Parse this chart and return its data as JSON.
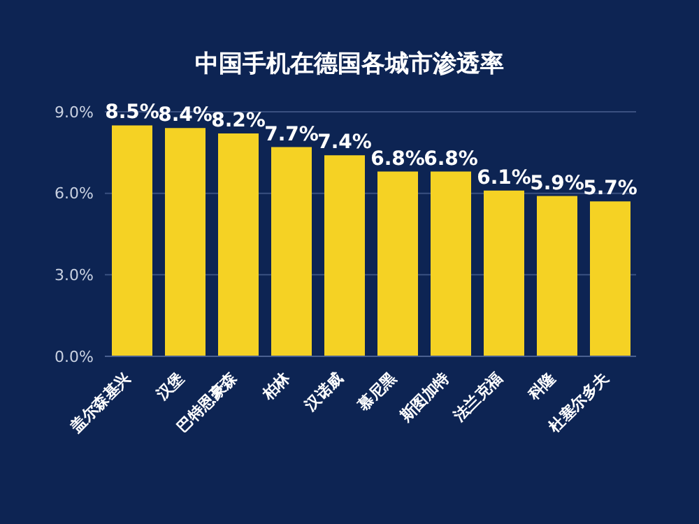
{
  "chart_data": {
    "type": "bar",
    "title": "中国手机在德国各城市渗透率",
    "categories": [
      "盖尔森基兴",
      "汉堡",
      "巴特恩豪森",
      "柏林",
      "汉诺威",
      "慕尼黑",
      "斯图加特",
      "法兰克福",
      "科隆",
      "杜塞尔多夫"
    ],
    "values": [
      8.5,
      8.4,
      8.2,
      7.7,
      7.4,
      6.8,
      6.8,
      6.1,
      5.9,
      5.7
    ],
    "value_labels": [
      "8.5%",
      "8.4%",
      "8.2%",
      "7.7%",
      "7.4%",
      "6.8%",
      "6.8%",
      "6.1%",
      "5.9%",
      "5.7%"
    ],
    "color": "#f5d224",
    "ylim": [
      0,
      9
    ],
    "yticks": [
      {
        "value": 0,
        "label": "0.0%"
      },
      {
        "value": 3,
        "label": "3.0%"
      },
      {
        "value": 6,
        "label": "6.0%"
      },
      {
        "value": 9,
        "label": "9.0%"
      }
    ],
    "grid": "y"
  }
}
